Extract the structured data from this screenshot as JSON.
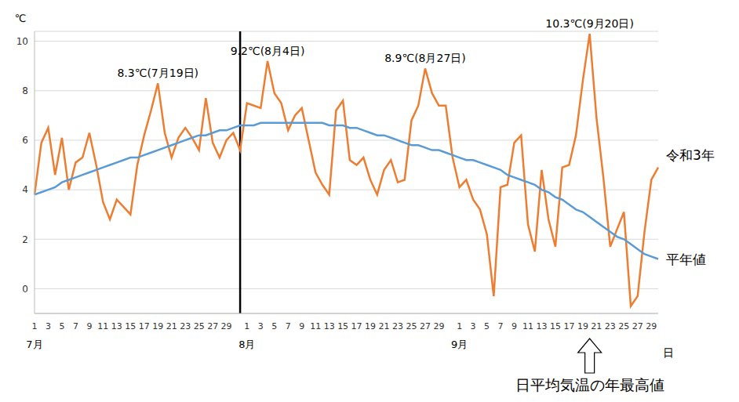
{
  "chart_data": {
    "type": "line",
    "categories": [
      "1",
      null,
      "3",
      null,
      "5",
      null,
      "7",
      null,
      "9",
      null,
      "11",
      null,
      "13",
      null,
      "15",
      null,
      "17",
      null,
      "19",
      null,
      "21",
      null,
      "23",
      null,
      "25",
      null,
      "27",
      null,
      "29",
      null,
      null,
      "1",
      null,
      "3",
      null,
      "5",
      null,
      "7",
      null,
      "9",
      null,
      "11",
      null,
      "13",
      null,
      "15",
      null,
      "17",
      null,
      "19",
      null,
      "21",
      null,
      "23",
      null,
      "25",
      null,
      "27",
      null,
      "29",
      null,
      null,
      "1",
      null,
      "3",
      null,
      "5",
      null,
      "7",
      null,
      "9",
      null,
      "11",
      null,
      "13",
      null,
      "15",
      null,
      "17",
      null,
      "19",
      null,
      "21",
      null,
      "23",
      null,
      "25",
      null,
      "27",
      null,
      "29",
      null
    ],
    "months": [
      "7月",
      "8月",
      "9月"
    ],
    "series": [
      {
        "name": "令和3年",
        "color": "#ED7D31",
        "values": [
          3.8,
          5.9,
          6.5,
          4.6,
          6.1,
          4.0,
          5.1,
          5.3,
          6.3,
          5.0,
          3.5,
          2.8,
          3.6,
          3.3,
          3.0,
          5.0,
          6.2,
          7.2,
          8.3,
          6.3,
          5.3,
          6.1,
          6.5,
          6.1,
          5.6,
          7.7,
          5.9,
          5.3,
          6.0,
          6.3,
          5.6,
          7.5,
          7.4,
          7.3,
          9.2,
          7.9,
          7.5,
          6.4,
          7.0,
          7.3,
          6.0,
          4.7,
          4.2,
          3.8,
          7.2,
          7.6,
          5.2,
          5.0,
          5.3,
          4.4,
          3.8,
          4.8,
          5.2,
          4.3,
          4.4,
          6.8,
          7.4,
          8.9,
          7.9,
          7.4,
          7.4,
          5.3,
          4.1,
          4.4,
          3.6,
          3.2,
          2.2,
          -0.3,
          4.1,
          4.2,
          5.9,
          6.2,
          2.6,
          1.5,
          4.8,
          2.8,
          1.7,
          4.9,
          5.0,
          6.2,
          8.4,
          10.3,
          6.9,
          4.5,
          1.7,
          2.4,
          3.1,
          -0.7,
          -0.3,
          2.3,
          4.4,
          4.9
        ]
      },
      {
        "name": "平年値",
        "color": "#5B9BD5",
        "values": [
          3.8,
          3.9,
          4.0,
          4.1,
          4.3,
          4.4,
          4.5,
          4.6,
          4.7,
          4.8,
          4.9,
          5.0,
          5.1,
          5.2,
          5.3,
          5.3,
          5.4,
          5.5,
          5.6,
          5.7,
          5.8,
          5.9,
          6.0,
          6.1,
          6.2,
          6.2,
          6.3,
          6.4,
          6.4,
          6.5,
          6.6,
          6.6,
          6.6,
          6.7,
          6.7,
          6.7,
          6.7,
          6.7,
          6.7,
          6.7,
          6.7,
          6.7,
          6.7,
          6.6,
          6.6,
          6.6,
          6.5,
          6.5,
          6.4,
          6.3,
          6.2,
          6.2,
          6.1,
          6.0,
          5.9,
          5.8,
          5.8,
          5.7,
          5.6,
          5.6,
          5.5,
          5.4,
          5.3,
          5.2,
          5.2,
          5.1,
          5.0,
          4.9,
          4.8,
          4.6,
          4.5,
          4.4,
          4.3,
          4.2,
          4.0,
          3.9,
          3.7,
          3.6,
          3.4,
          3.2,
          3.1,
          2.9,
          2.7,
          2.5,
          2.3,
          2.1,
          2.0,
          1.8,
          1.6,
          1.4,
          1.3,
          1.2
        ]
      }
    ],
    "ylim": [
      -1,
      10.4
    ],
    "yticks": [
      0,
      2,
      4,
      6,
      8,
      10
    ],
    "y_label": "℃",
    "x_label": "日",
    "annotations": [
      {
        "text": "8.3℃(7月19日)",
        "value": 8.3
      },
      {
        "text": "9.2℃(8月4日)",
        "value": 9.2
      },
      {
        "text": "8.9℃(8月27日)",
        "value": 8.9
      },
      {
        "text": "10.3℃(9月20日)",
        "value": 10.3
      }
    ],
    "highlight": "日平均気温の年最高値",
    "grid": true
  }
}
